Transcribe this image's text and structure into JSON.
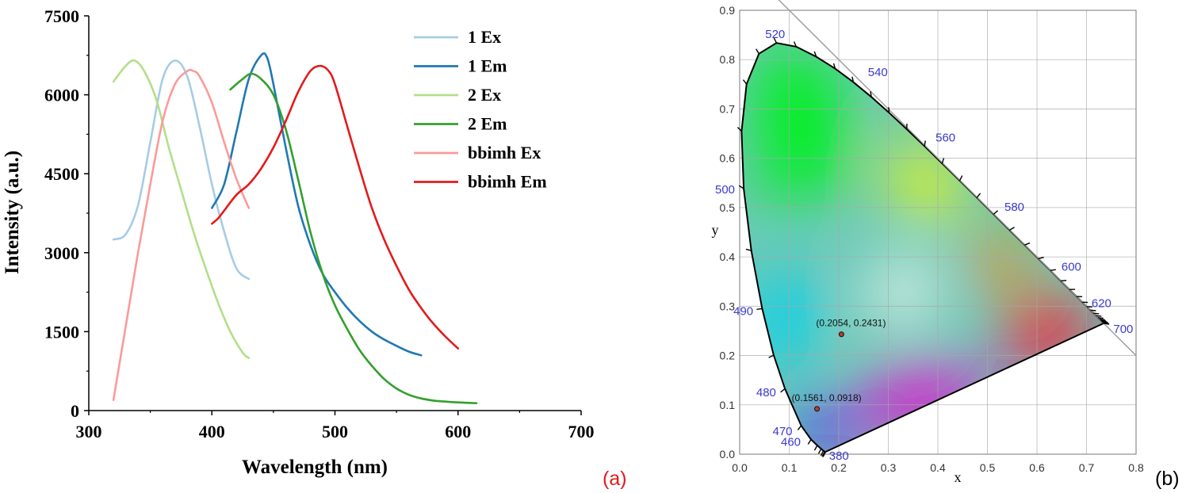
{
  "panel_a_label": "(a)",
  "panel_b_label": "(b)",
  "chart_data": [
    {
      "type": "line",
      "xlabel": "Wavelength (nm)",
      "ylabel": "Intensity (a.u.)",
      "xlim": [
        300,
        700
      ],
      "ylim": [
        0,
        7500
      ],
      "xticks": [
        "300",
        "400",
        "500",
        "600",
        "700"
      ],
      "yticks": [
        "0",
        "1500",
        "3000",
        "4500",
        "6000",
        "7500"
      ],
      "grid": false,
      "legend": "top-right",
      "series": [
        {
          "name": "1 Ex",
          "color": "#a6cce4",
          "x": [
            320,
            330,
            340,
            350,
            360,
            370,
            380,
            390,
            400,
            410,
            420,
            430
          ],
          "y": [
            3250,
            3350,
            3900,
            5100,
            6300,
            6650,
            6350,
            5400,
            4300,
            3400,
            2700,
            2500
          ]
        },
        {
          "name": "1 Em",
          "color": "#1f78b4",
          "x": [
            400,
            410,
            420,
            430,
            440,
            445,
            450,
            460,
            470,
            480,
            490,
            500,
            510,
            520,
            530,
            540,
            550,
            560,
            570
          ],
          "y": [
            3850,
            4300,
            5300,
            6300,
            6750,
            6700,
            6200,
            5000,
            3900,
            3150,
            2600,
            2250,
            1950,
            1700,
            1500,
            1350,
            1230,
            1120,
            1050
          ]
        },
        {
          "name": "2 Ex",
          "color": "#b2df8a",
          "x": [
            320,
            330,
            337,
            345,
            355,
            365,
            375,
            385,
            395,
            405,
            415,
            425,
            430
          ],
          "y": [
            6250,
            6550,
            6650,
            6450,
            5900,
            5000,
            4200,
            3400,
            2700,
            2050,
            1500,
            1100,
            1000
          ]
        },
        {
          "name": "2 Em",
          "color": "#33a02c",
          "x": [
            415,
            425,
            432,
            440,
            450,
            460,
            470,
            480,
            490,
            500,
            510,
            520,
            530,
            540,
            550,
            560,
            570,
            580,
            590,
            600,
            615
          ],
          "y": [
            6100,
            6300,
            6400,
            6300,
            6000,
            5350,
            4400,
            3400,
            2600,
            2000,
            1550,
            1150,
            850,
            600,
            420,
            300,
            230,
            190,
            170,
            155,
            140
          ]
        },
        {
          "name": "bbimh Ex",
          "color": "#fb9a99",
          "x": [
            320,
            330,
            340,
            350,
            360,
            370,
            380,
            385,
            390,
            400,
            410,
            420,
            430
          ],
          "y": [
            200,
            1600,
            3000,
            4300,
            5500,
            6200,
            6450,
            6450,
            6350,
            5850,
            5100,
            4400,
            3850
          ]
        },
        {
          "name": "bbimh Em",
          "color": "#e31a1c",
          "x": [
            400,
            405,
            410,
            420,
            430,
            440,
            450,
            460,
            470,
            480,
            488,
            495,
            500,
            510,
            520,
            530,
            540,
            550,
            560,
            570,
            580,
            590,
            600
          ],
          "y": [
            3550,
            3650,
            3800,
            4100,
            4300,
            4600,
            5000,
            5500,
            6050,
            6450,
            6550,
            6450,
            6200,
            5400,
            4600,
            3850,
            3250,
            2750,
            2300,
            1950,
            1650,
            1400,
            1180
          ]
        }
      ]
    },
    {
      "type": "scatter",
      "title": "",
      "xlabel": "x",
      "ylabel": "y",
      "xlim": [
        0.0,
        0.8
      ],
      "ylim": [
        0.0,
        0.9
      ],
      "xticks": [
        "0.0",
        "0.1",
        "0.2",
        "0.3",
        "0.4",
        "0.5",
        "0.6",
        "0.7",
        "0.8"
      ],
      "yticks": [
        "0.0",
        "0.1",
        "0.2",
        "0.3",
        "0.4",
        "0.5",
        "0.6",
        "0.7",
        "0.8",
        "0.9"
      ],
      "grid": true,
      "wavelength_labels": [
        {
          "text": "520",
          "x": 0.074,
          "y": 0.834
        },
        {
          "text": "540",
          "x": 0.23,
          "y": 0.754
        },
        {
          "text": "560",
          "x": 0.373,
          "y": 0.624
        },
        {
          "text": "580",
          "x": 0.512,
          "y": 0.487
        },
        {
          "text": "600",
          "x": 0.627,
          "y": 0.372
        },
        {
          "text": "620",
          "x": 0.691,
          "y": 0.308
        },
        {
          "text": "700",
          "x": 0.735,
          "y": 0.265
        },
        {
          "text": "500",
          "x": 0.008,
          "y": 0.538
        },
        {
          "text": "490",
          "x": 0.045,
          "y": 0.295
        },
        {
          "text": "480",
          "x": 0.091,
          "y": 0.133
        },
        {
          "text": "470",
          "x": 0.124,
          "y": 0.058
        },
        {
          "text": "460",
          "x": 0.144,
          "y": 0.03
        },
        {
          "text": "380",
          "x": 0.174,
          "y": 0.005
        }
      ],
      "points": [
        {
          "label": "(0.2054, 0.2431)",
          "x": 0.2054,
          "y": 0.2431
        },
        {
          "label": "(0.1561, 0.0918)",
          "x": 0.1561,
          "y": 0.0918
        }
      ]
    }
  ]
}
